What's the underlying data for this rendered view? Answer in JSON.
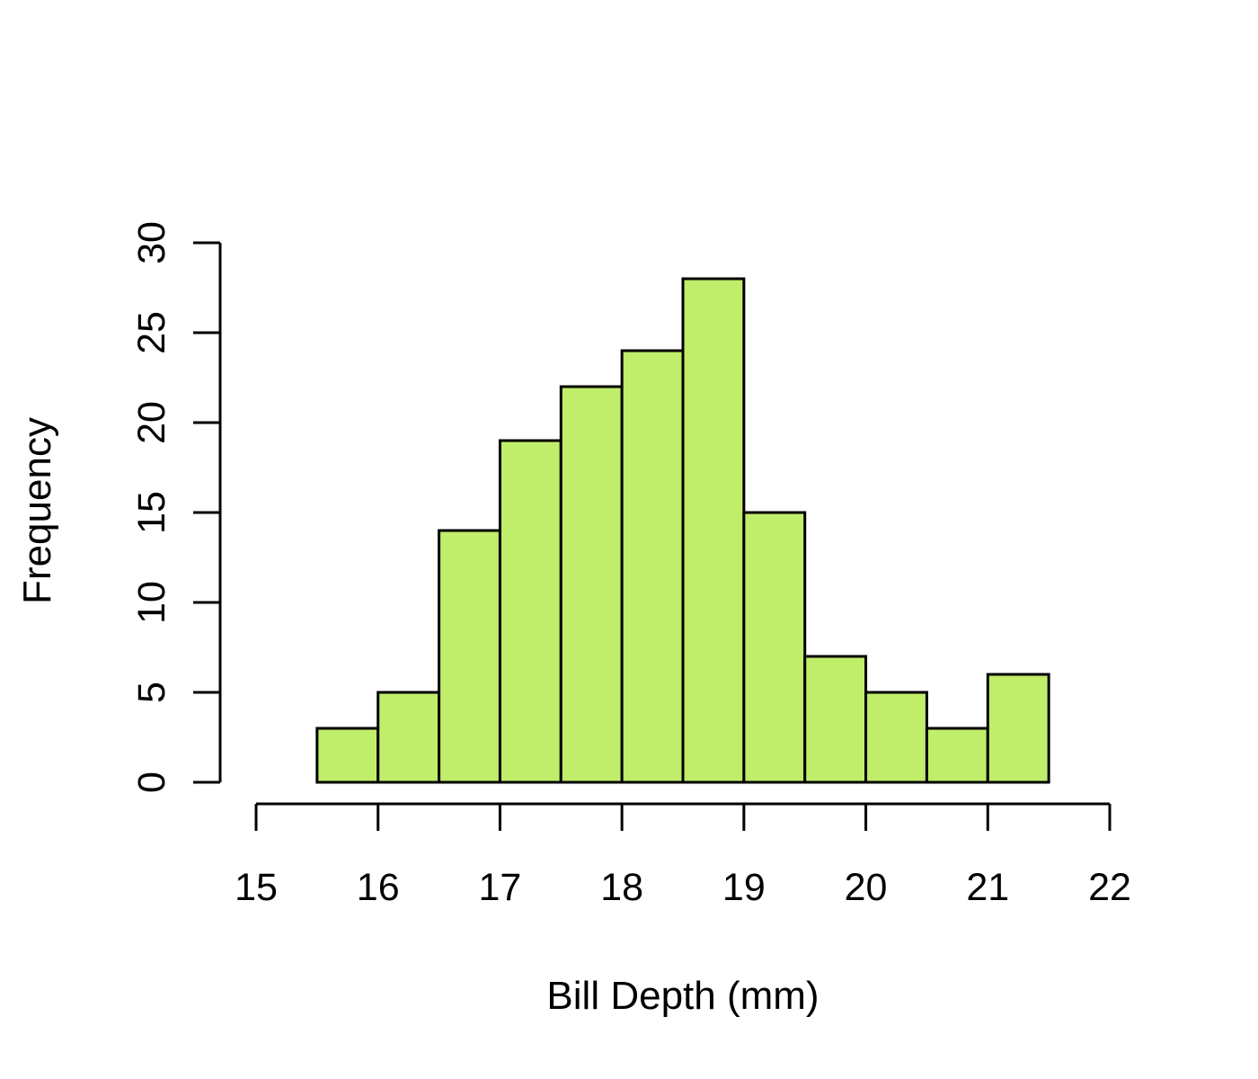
{
  "chart_data": {
    "type": "bar",
    "subtype": "histogram",
    "title": "",
    "xlabel": "Bill Depth (mm)",
    "ylabel": "Frequency",
    "bin_width": 0.5,
    "bins": [
      {
        "start": 15.5,
        "end": 16.0,
        "count": 3
      },
      {
        "start": 16.0,
        "end": 16.5,
        "count": 5
      },
      {
        "start": 16.5,
        "end": 17.0,
        "count": 14
      },
      {
        "start": 17.0,
        "end": 17.5,
        "count": 19
      },
      {
        "start": 17.5,
        "end": 18.0,
        "count": 22
      },
      {
        "start": 18.0,
        "end": 18.5,
        "count": 24
      },
      {
        "start": 18.5,
        "end": 19.0,
        "count": 28
      },
      {
        "start": 19.0,
        "end": 19.5,
        "count": 15
      },
      {
        "start": 19.5,
        "end": 20.0,
        "count": 7
      },
      {
        "start": 20.0,
        "end": 20.5,
        "count": 5
      },
      {
        "start": 20.5,
        "end": 21.0,
        "count": 3
      },
      {
        "start": 21.0,
        "end": 21.5,
        "count": 6
      }
    ],
    "xlim": [
      15,
      22
    ],
    "ylim": [
      0,
      30
    ],
    "xticks": [
      15,
      16,
      17,
      18,
      19,
      20,
      21,
      22
    ],
    "yticks": [
      0,
      5,
      10,
      15,
      20,
      25,
      30
    ],
    "bar_color": "#c0ed6a",
    "bar_border_color": "#000000",
    "grid": false,
    "legend": "none"
  }
}
